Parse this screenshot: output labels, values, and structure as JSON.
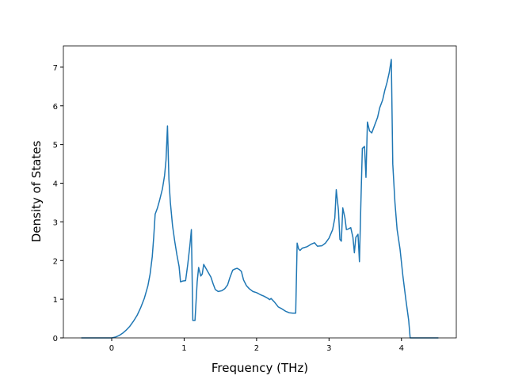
{
  "chart_data": {
    "type": "line",
    "xlabel": "Frequency (THz)",
    "ylabel": "Density of States",
    "xlim": [
      -0.667,
      4.757
    ],
    "ylim": [
      0,
      7.55
    ],
    "xticks": [
      0,
      1,
      2,
      3,
      4
    ],
    "yticks": [
      0,
      1,
      2,
      3,
      4,
      5,
      6,
      7
    ],
    "x": [
      -0.42,
      0,
      0.05,
      0.1,
      0.15,
      0.2,
      0.25,
      0.3,
      0.35,
      0.4,
      0.45,
      0.5,
      0.53,
      0.56,
      0.58,
      0.6,
      0.63,
      0.66,
      0.7,
      0.73,
      0.75,
      0.77,
      0.79,
      0.81,
      0.84,
      0.87,
      0.9,
      0.93,
      0.95,
      0.98,
      1.02,
      1.05,
      1.08,
      1.1,
      1.12,
      1.15,
      1.18,
      1.2,
      1.23,
      1.25,
      1.27,
      1.3,
      1.33,
      1.37,
      1.4,
      1.43,
      1.47,
      1.52,
      1.56,
      1.6,
      1.63,
      1.67,
      1.7,
      1.73,
      1.76,
      1.79,
      1.82,
      1.86,
      1.9,
      1.95,
      2.0,
      2.05,
      2.1,
      2.15,
      2.18,
      2.2,
      2.25,
      2.3,
      2.35,
      2.4,
      2.45,
      2.5,
      2.54,
      2.56,
      2.58,
      2.6,
      2.63,
      2.7,
      2.75,
      2.8,
      2.84,
      2.9,
      2.95,
      3.0,
      3.05,
      3.08,
      3.1,
      3.13,
      3.15,
      3.17,
      3.19,
      3.22,
      3.24,
      3.27,
      3.3,
      3.33,
      3.35,
      3.37,
      3.4,
      3.42,
      3.44,
      3.46,
      3.49,
      3.51,
      3.53,
      3.56,
      3.59,
      3.63,
      3.67,
      3.7,
      3.74,
      3.77,
      3.8,
      3.83,
      3.86,
      3.88,
      3.91,
      3.94,
      3.98,
      4.02,
      4.06,
      4.1,
      4.12,
      4.51
    ],
    "series": [
      {
        "color": "#1f77b4",
        "values": [
          0,
          0,
          0.02,
          0.06,
          0.12,
          0.2,
          0.3,
          0.43,
          0.58,
          0.78,
          1.02,
          1.35,
          1.65,
          2.1,
          2.6,
          3.2,
          3.35,
          3.55,
          3.85,
          4.2,
          4.6,
          5.48,
          4.1,
          3.5,
          2.9,
          2.5,
          2.15,
          1.85,
          1.45,
          1.47,
          1.48,
          1.9,
          2.4,
          2.8,
          0.45,
          0.45,
          1.45,
          1.82,
          1.6,
          1.65,
          1.9,
          1.8,
          1.7,
          1.57,
          1.4,
          1.25,
          1.2,
          1.22,
          1.27,
          1.37,
          1.55,
          1.75,
          1.78,
          1.8,
          1.77,
          1.72,
          1.5,
          1.35,
          1.27,
          1.2,
          1.17,
          1.12,
          1.08,
          1.03,
          0.99,
          1.02,
          0.92,
          0.8,
          0.75,
          0.69,
          0.65,
          0.64,
          0.64,
          2.45,
          2.3,
          2.26,
          2.32,
          2.36,
          2.42,
          2.46,
          2.37,
          2.38,
          2.45,
          2.58,
          2.8,
          3.1,
          3.83,
          3.3,
          2.55,
          2.5,
          3.36,
          3.1,
          2.8,
          2.82,
          2.85,
          2.6,
          2.2,
          2.6,
          2.68,
          1.97,
          3.5,
          4.9,
          4.95,
          4.15,
          5.58,
          5.35,
          5.3,
          5.5,
          5.7,
          5.95,
          6.15,
          6.4,
          6.6,
          6.85,
          7.2,
          4.5,
          3.5,
          2.8,
          2.3,
          1.6,
          1.0,
          0.45,
          0,
          0
        ]
      }
    ]
  }
}
